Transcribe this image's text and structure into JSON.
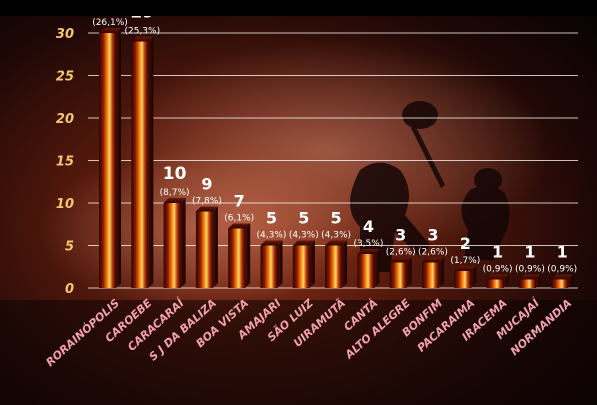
{
  "chart_data": {
    "type": "bar",
    "title": "",
    "xlabel": "",
    "ylabel": "",
    "ylim": [
      0,
      30
    ],
    "yticks": [
      0,
      5,
      10,
      15,
      20,
      25,
      30
    ],
    "grid": true,
    "categories": [
      "RORAINÓPOLIS",
      "CAROEBE",
      "CARACARAÍ",
      "S J DA BALIZA",
      "BOA VISTA",
      "AMAJARI",
      "SÃO LUIZ",
      "UIRAMUTÃ",
      "CANTÁ",
      "ALTO ALEGRE",
      "BONFIM",
      "PACARAIMA",
      "IRACEMA",
      "MUCAJAÍ",
      "NORMANDIA"
    ],
    "values": [
      30,
      29,
      10,
      9,
      7,
      5,
      5,
      5,
      4,
      3,
      3,
      2,
      1,
      1,
      1
    ],
    "percent_labels": [
      "(26,1%)",
      "(25,3%)",
      "(8,7%)",
      "(7,8%)",
      "(6,1%)",
      "(4,3%)",
      "(4,3%)",
      "(4,3%)",
      "(3,5%)",
      "(2,6%)",
      "(2,6%)",
      "(1,7%)",
      "(0,9%)",
      "(0,9%)",
      "(0,9%)"
    ],
    "colors": {
      "tick_text": "#f6c66e",
      "category_text": "#f3a0ae",
      "value_text": "#ffffff",
      "gridline": "#ffffff",
      "bar_dark": "#2a0500",
      "bar_mid": "#8a1a02",
      "bar_fire": "#ff8a10",
      "bar_glow": "#ffd86a"
    }
  }
}
